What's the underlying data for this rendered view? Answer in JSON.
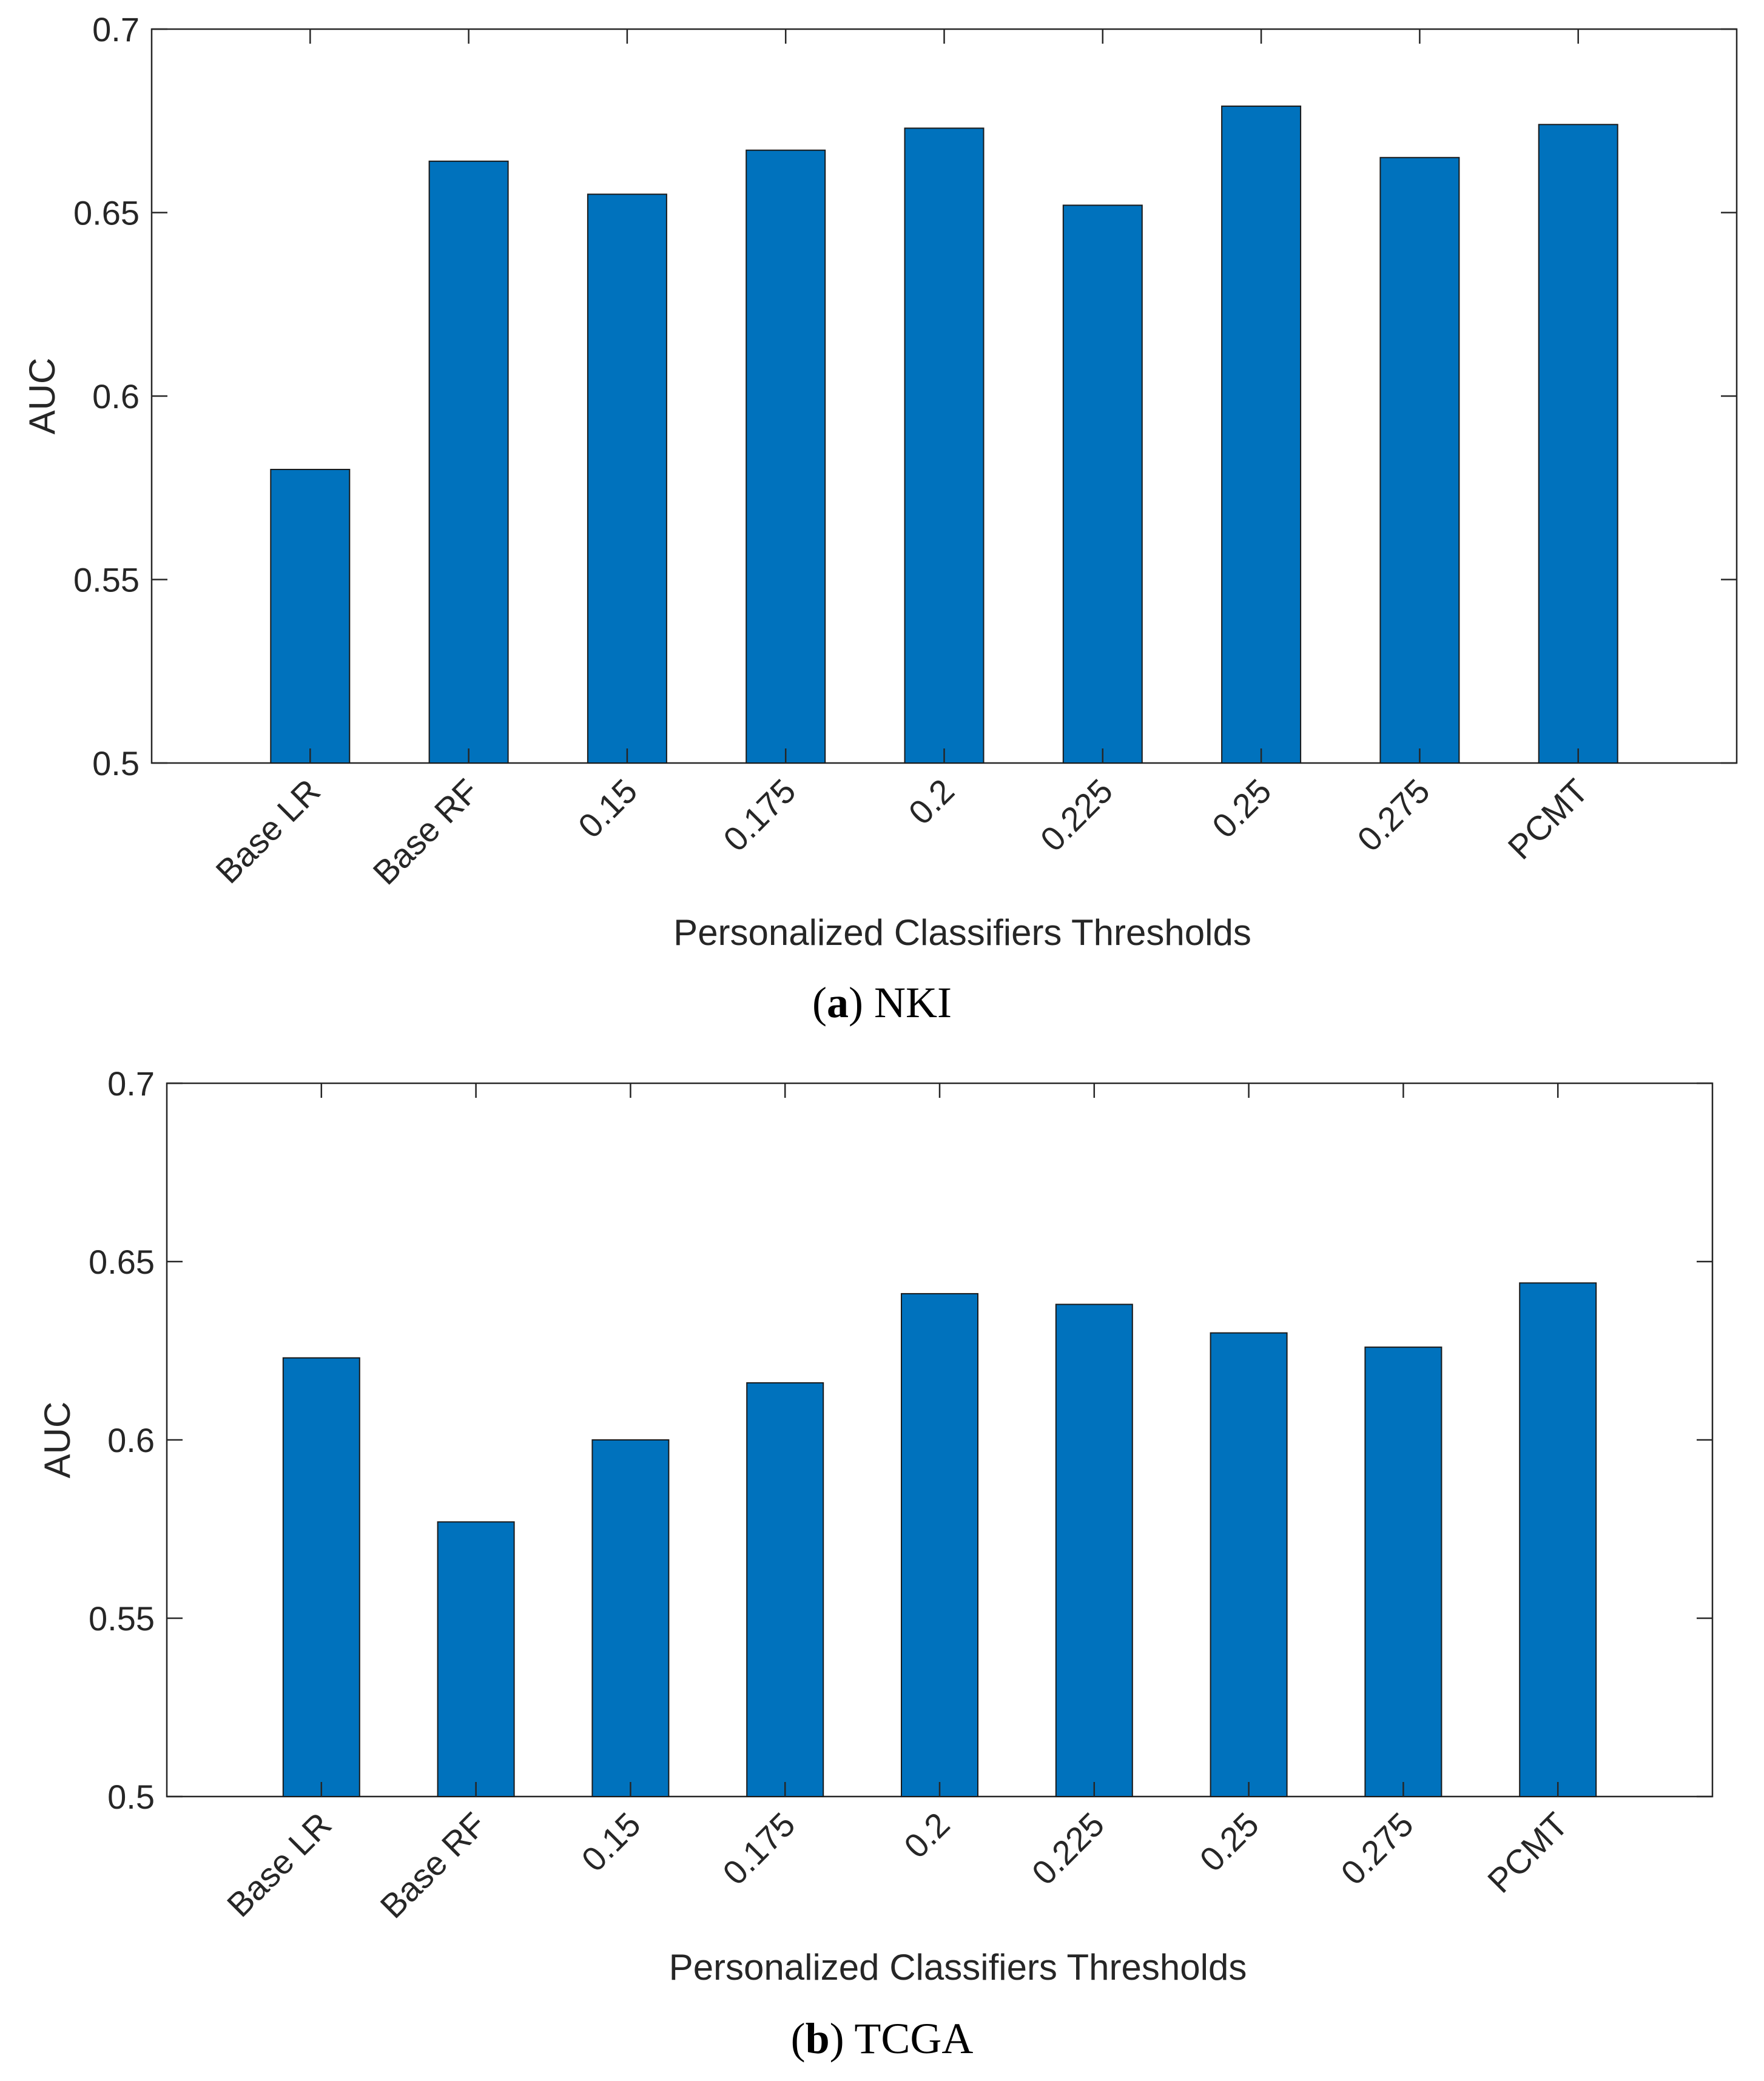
{
  "chart_data": [
    {
      "type": "bar",
      "panel": "a",
      "caption_label": "a",
      "caption_text": "NKI",
      "categories": [
        "Base LR",
        "Base RF",
        "0.15",
        "0.175",
        "0.2",
        "0.225",
        "0.25",
        "0.275",
        "PCMT"
      ],
      "values": [
        0.58,
        0.664,
        0.655,
        0.667,
        0.673,
        0.652,
        0.679,
        0.665,
        0.674
      ],
      "xlabel": "Personalized Classifiers Thresholds",
      "ylabel": "AUC",
      "ylim": [
        0.5,
        0.7
      ],
      "yticks": [
        "0.5",
        "0.55",
        "0.6",
        "0.65",
        "0.7"
      ],
      "grid": false,
      "bar_color": "#0072BD"
    },
    {
      "type": "bar",
      "panel": "b",
      "caption_label": "b",
      "caption_text": "TCGA",
      "categories": [
        "Base LR",
        "Base RF",
        "0.15",
        "0.175",
        "0.2",
        "0.225",
        "0.25",
        "0.275",
        "PCMT"
      ],
      "values": [
        0.623,
        0.577,
        0.6,
        0.616,
        0.641,
        0.638,
        0.63,
        0.626,
        0.644
      ],
      "xlabel": "Personalized Classifiers Thresholds",
      "ylabel": "AUC",
      "ylim": [
        0.5,
        0.7
      ],
      "yticks": [
        "0.5",
        "0.55",
        "0.6",
        "0.65",
        "0.7"
      ],
      "grid": false,
      "bar_color": "#0072BD"
    }
  ]
}
